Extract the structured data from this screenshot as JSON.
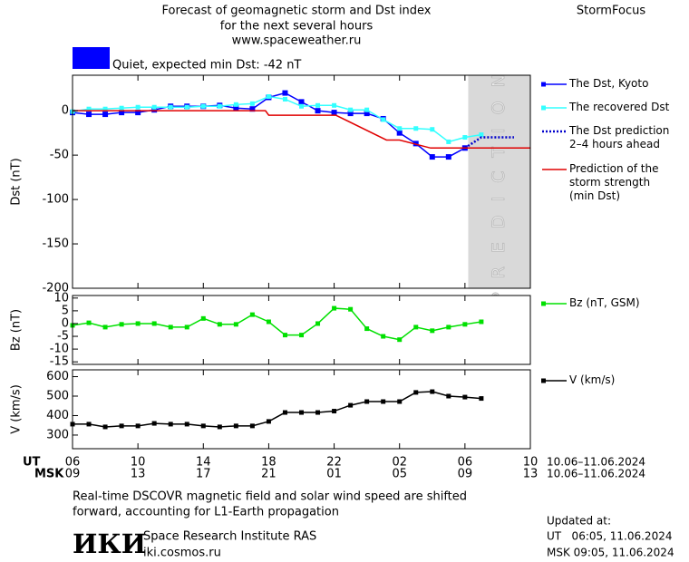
{
  "header": {
    "title": [
      "Forecast of geomagnetic storm and Dst index",
      "for the next several hours",
      "www.spaceweather.ru"
    ],
    "brand": "StormFocus",
    "status": {
      "color": "#0000ff",
      "text": "Quiet, expected min Dst: -42 nT"
    }
  },
  "x_axis": {
    "xlim": [
      0,
      28
    ],
    "ut_label": "UT",
    "msk_label": "MSK",
    "xticks": [
      {
        "value": 0,
        "label": "06"
      },
      {
        "value": 4,
        "label": "10"
      },
      {
        "value": 8,
        "label": "14"
      },
      {
        "value": 12,
        "label": "18"
      },
      {
        "value": 16,
        "label": "22"
      },
      {
        "value": 20,
        "label": "02"
      },
      {
        "value": 24,
        "label": "06"
      },
      {
        "value": 28,
        "label": "10"
      }
    ],
    "xticks_msk": [
      {
        "value": 0,
        "label": "09"
      },
      {
        "value": 4,
        "label": "13"
      },
      {
        "value": 8,
        "label": "17"
      },
      {
        "value": 12,
        "label": "21"
      },
      {
        "value": 16,
        "label": "01"
      },
      {
        "value": 20,
        "label": "05"
      },
      {
        "value": 24,
        "label": "09"
      },
      {
        "value": 28,
        "label": "13"
      }
    ],
    "date_range_ut": "10.06–11.06.2024",
    "date_range_msk": "10.06–11.06.2024"
  },
  "chart_data": [
    {
      "type": "line",
      "y_label": "Dst (nT)",
      "ylim": [
        -200,
        40
      ],
      "yticks": [
        0,
        -50,
        -100,
        -150,
        -200
      ],
      "prediction_region": {
        "label": "PREDICTION",
        "x": [
          24.2,
          28
        ]
      },
      "series": [
        {
          "name": "The Dst, Kyoto",
          "color": "#0000ff",
          "marker": true,
          "x": [
            0,
            1,
            2,
            3,
            4,
            5,
            6,
            7,
            8,
            9,
            10,
            11,
            12,
            13,
            14,
            15,
            16,
            17,
            18,
            19,
            20,
            21,
            22,
            23,
            24
          ],
          "values": [
            -2,
            -4,
            -4,
            -2,
            -2,
            1,
            5,
            5,
            5,
            6,
            3,
            2,
            15,
            20,
            10,
            0,
            -2,
            -3,
            -3,
            -9,
            -25,
            -37,
            -52,
            -52,
            -42
          ]
        },
        {
          "name": "The recovered Dst",
          "color": "#33ffff",
          "marker": true,
          "x": [
            0,
            1,
            2,
            3,
            4,
            5,
            6,
            7,
            8,
            9,
            10,
            11,
            12,
            13,
            14,
            15,
            16,
            17,
            18,
            19,
            20,
            21,
            22,
            23,
            24,
            25
          ],
          "values": [
            -1,
            2,
            2,
            3,
            4,
            4,
            4,
            4,
            5,
            5,
            7,
            8,
            16,
            13,
            5,
            6,
            6,
            1,
            1,
            -10,
            -20,
            -20,
            -21,
            -35,
            -30,
            -27
          ]
        },
        {
          "name": "The Dst prediction\n2–4 hours ahead",
          "color": "#0000cc",
          "dashed": true,
          "x": [
            24,
            25,
            27
          ],
          "values": [
            -42,
            -30,
            -30
          ]
        },
        {
          "name": "Prediction of the\nstorm strength\n(min Dst)",
          "color": "#e00000",
          "x": [
            0,
            11.8,
            12,
            16.1,
            19.2,
            20,
            21.9,
            28
          ],
          "values": [
            0,
            0,
            -5,
            -5,
            -33,
            -33,
            -42,
            -42
          ]
        }
      ]
    },
    {
      "type": "line",
      "y_label": "Bz (nT)",
      "ylim": [
        -16,
        11
      ],
      "yticks": [
        10,
        5,
        0,
        -5,
        -10,
        -15
      ],
      "series": [
        {
          "name": "Bz (nT, GSM)",
          "color": "#00e000",
          "marker": true,
          "x": [
            0,
            1,
            2,
            3,
            4,
            5,
            6,
            7,
            8,
            9,
            10,
            11,
            12,
            13,
            14,
            15,
            16,
            17,
            18,
            19,
            20,
            21,
            22,
            23,
            24,
            25
          ],
          "values": [
            -0.7,
            0.3,
            -1.4,
            -0.3,
            0,
            0,
            -1.4,
            -1.4,
            2,
            -0.3,
            -0.3,
            3.5,
            0.7,
            -4.5,
            -4.5,
            0,
            6,
            5.6,
            -2,
            -5,
            -6.3,
            -1.4,
            -2.8,
            -1.4,
            -0.3,
            0.7
          ]
        }
      ]
    },
    {
      "type": "line",
      "y_label": "V (km/s)",
      "ylim": [
        230,
        635
      ],
      "yticks": [
        600,
        500,
        400,
        300
      ],
      "series": [
        {
          "name": "V (km/s)",
          "color": "#000000",
          "marker": true,
          "x": [
            0,
            1,
            2,
            3,
            4,
            5,
            6,
            7,
            8,
            9,
            10,
            11,
            12,
            13,
            14,
            15,
            16,
            17,
            18,
            19,
            20,
            21,
            22,
            23,
            24,
            25
          ],
          "values": [
            356,
            356,
            342,
            347,
            347,
            360,
            356,
            356,
            347,
            342,
            347,
            347,
            370,
            416,
            416,
            416,
            423,
            453,
            472,
            472,
            472,
            519,
            523,
            500,
            495,
            488
          ]
        }
      ]
    }
  ],
  "footer": {
    "note": [
      "Real-time DSCOVR magnetic field and solar wind speed are shifted",
      "forward, accounting for L1-Earth propagation"
    ],
    "logo": "ИКИ",
    "institute": "Space Research Institute RAS",
    "site": "iki.cosmos.ru",
    "updated_label": "Updated at:",
    "updated_ut": "UT   06:05, 11.06.2024",
    "updated_msk": "MSK 09:05, 11.06.2024"
  }
}
